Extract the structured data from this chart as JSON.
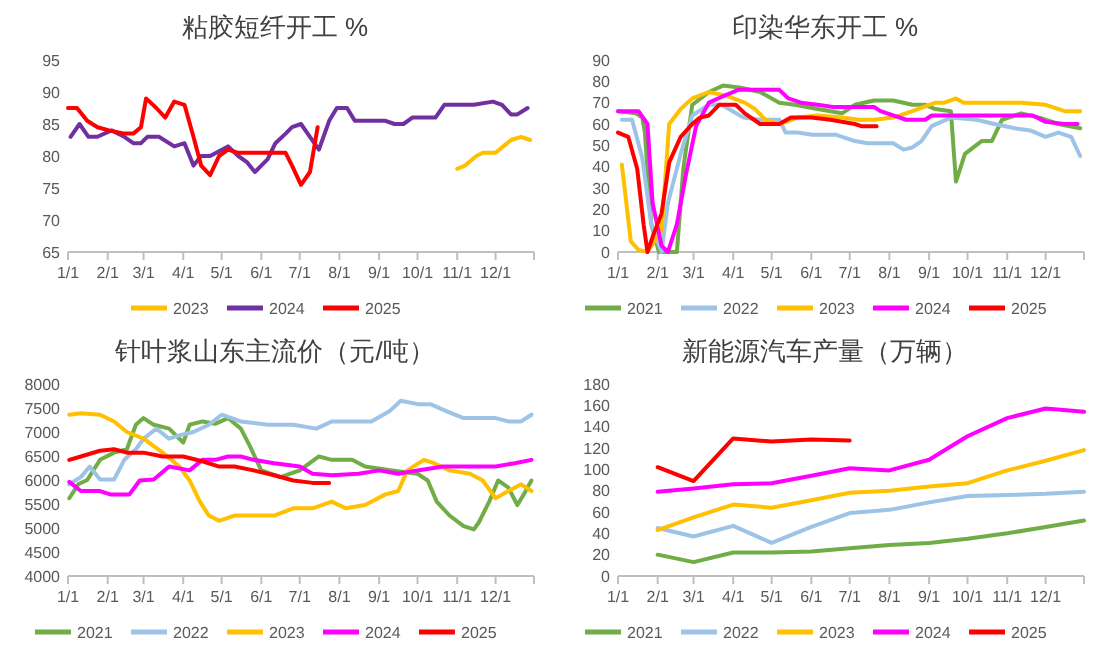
{
  "chart_data": [
    {
      "type": "line",
      "title": "粘胶短纤开工 %",
      "xlim": [
        "--01-01",
        "--12-31"
      ],
      "xticks": [
        {
          "value": "--01-01",
          "label": "1/1"
        },
        {
          "value": "--02-01",
          "label": "2/1"
        },
        {
          "value": "--03-01",
          "label": "3/1"
        },
        {
          "value": "--04-01",
          "label": "4/1"
        },
        {
          "value": "--05-01",
          "label": "5/1"
        },
        {
          "value": "--06-01",
          "label": "6/1"
        },
        {
          "value": "--07-01",
          "label": "7/1"
        },
        {
          "value": "--08-01",
          "label": "8/1"
        },
        {
          "value": "--09-01",
          "label": "9/1"
        },
        {
          "value": "--10-01",
          "label": "10/1"
        },
        {
          "value": "--11-01",
          "label": "11/1"
        },
        {
          "value": "--12-01",
          "label": "12/1"
        }
      ],
      "ylim": [
        65,
        95
      ],
      "yticks": [
        65,
        70,
        75,
        80,
        85,
        90,
        95
      ],
      "legend": "bottom",
      "series": [
        {
          "name": "2023",
          "color": "#ffc000",
          "x": [
            "--11-01",
            "--11-07",
            "--11-16",
            "--11-21",
            "--12-01",
            "--12-07",
            "--12-13",
            "--12-21",
            "--12-28"
          ],
          "values": [
            78,
            78.5,
            80,
            80.5,
            80.5,
            81.5,
            82.5,
            83,
            82.5
          ]
        },
        {
          "name": "2024",
          "color": "#7030a0",
          "x": [
            "--01-03",
            "--01-10",
            "--01-17",
            "--01-24",
            "--02-04",
            "--02-14",
            "--02-21",
            "--02-27",
            "--03-04",
            "--03-13",
            "--03-25",
            "--04-02",
            "--04-09",
            "--04-15",
            "--04-22",
            "--05-06",
            "--05-14",
            "--05-21",
            "--05-27",
            "--06-06",
            "--06-12",
            "--06-20",
            "--06-25",
            "--07-02",
            "--07-09",
            "--07-16",
            "--07-24",
            "--07-30",
            "--08-07",
            "--08-13",
            "--08-24",
            "--09-06",
            "--09-13",
            "--09-20",
            "--09-27",
            "--10-15",
            "--10-22",
            "--11-14",
            "--11-29",
            "--12-06",
            "--12-13",
            "--12-18",
            "--12-26"
          ],
          "values": [
            83,
            85,
            83,
            83,
            84,
            83,
            82,
            82,
            83,
            83,
            81.5,
            82,
            78.5,
            80,
            80,
            81.5,
            80,
            79,
            77.5,
            79.5,
            82,
            83.5,
            84.5,
            85,
            83,
            81,
            85.5,
            87.5,
            87.5,
            85.5,
            85.5,
            85.5,
            85,
            85,
            86,
            86,
            88,
            88,
            88.5,
            88,
            86.5,
            86.5,
            87.5
          ]
        },
        {
          "name": "2025",
          "color": "#ff0000",
          "x": [
            "--01-01",
            "--01-08",
            "--01-16",
            "--01-24",
            "--02-02",
            "--02-14",
            "--02-21",
            "--02-27",
            "--03-03",
            "--03-11",
            "--03-18",
            "--03-25",
            "--04-02",
            "--04-09",
            "--04-15",
            "--04-22",
            "--04-29",
            "--05-06",
            "--05-14",
            "--05-27",
            "--06-16",
            "--06-20",
            "--06-25",
            "--07-02",
            "--07-09",
            "--07-15"
          ],
          "values": [
            87.5,
            87.5,
            85.5,
            84.5,
            84,
            83.5,
            83.5,
            84.5,
            89,
            87.5,
            86,
            88.5,
            88,
            83,
            78.5,
            77,
            80,
            81,
            80.5,
            80.5,
            80.5,
            80.5,
            78.5,
            75.5,
            77.5,
            84.5
          ]
        }
      ]
    },
    {
      "type": "line",
      "title": "印染华东开工 %",
      "xlim": [
        "--01-01",
        "--12-31"
      ],
      "xticks": [
        {
          "value": "--01-01",
          "label": "1/1"
        },
        {
          "value": "--02-01",
          "label": "2/1"
        },
        {
          "value": "--03-01",
          "label": "3/1"
        },
        {
          "value": "--04-01",
          "label": "4/1"
        },
        {
          "value": "--05-01",
          "label": "5/1"
        },
        {
          "value": "--06-01",
          "label": "6/1"
        },
        {
          "value": "--07-01",
          "label": "7/1"
        },
        {
          "value": "--08-01",
          "label": "8/1"
        },
        {
          "value": "--09-01",
          "label": "9/1"
        },
        {
          "value": "--10-01",
          "label": "10/1"
        },
        {
          "value": "--11-01",
          "label": "11/1"
        },
        {
          "value": "--12-01",
          "label": "12/1"
        }
      ],
      "ylim": [
        0,
        90
      ],
      "yticks": [
        0,
        10,
        20,
        30,
        40,
        50,
        60,
        70,
        80,
        90
      ],
      "legend": "bottom",
      "series": [
        {
          "name": "2021",
          "color": "#70ad47",
          "x": [
            "--01-01",
            "--01-15",
            "--01-20",
            "--01-22",
            "--01-27",
            "--02-02",
            "--02-16",
            "--02-21",
            "--02-28",
            "--03-13",
            "--03-24",
            "--04-07",
            "--04-22",
            "--05-07",
            "--05-19",
            "--06-06",
            "--06-25",
            "--07-05",
            "--07-20",
            "--08-04",
            "--08-19",
            "--08-29",
            "--09-06",
            "--09-18",
            "--09-22",
            "--09-29",
            "--10-12",
            "--10-20",
            "--10-28",
            "--11-12",
            "--11-26",
            "--12-11",
            "--12-28"
          ],
          "values": [
            66,
            65,
            63,
            56,
            13,
            0,
            0,
            39,
            69,
            75,
            78,
            77,
            75,
            70,
            69,
            67,
            65,
            69,
            71,
            71,
            69,
            69,
            67,
            66,
            33,
            46,
            52,
            52,
            62,
            65,
            63,
            60,
            58
          ]
        },
        {
          "name": "2022",
          "color": "#9dc3e6",
          "x": [
            "--01-04",
            "--01-12",
            "--01-20",
            "--01-27",
            "--02-04",
            "--02-09",
            "--02-19",
            "--02-28",
            "--03-13",
            "--03-23",
            "--04-09",
            "--04-22",
            "--05-07",
            "--05-12",
            "--05-21",
            "--06-02",
            "--06-20",
            "--07-05",
            "--07-15",
            "--08-04",
            "--08-12",
            "--08-19",
            "--08-26",
            "--09-03",
            "--09-18",
            "--10-08",
            "--10-22",
            "--11-07",
            "--11-19",
            "--12-01",
            "--12-11",
            "--12-21",
            "--12-28"
          ],
          "values": [
            62,
            62,
            44,
            13,
            0,
            23,
            46,
            64,
            69,
            69,
            63,
            62,
            62,
            56,
            56,
            55,
            55,
            52,
            51,
            51,
            48,
            49,
            52,
            59,
            63,
            62,
            60,
            58,
            57,
            54,
            56,
            54,
            45
          ]
        },
        {
          "name": "2023",
          "color": "#ffc000",
          "x": [
            "--01-04",
            "--01-11",
            "--01-17",
            "--01-24",
            "--02-04",
            "--02-10",
            "--02-19",
            "--02-28",
            "--03-13",
            "--03-28",
            "--04-10",
            "--04-18",
            "--04-26",
            "--05-07",
            "--05-21",
            "--06-06",
            "--06-25",
            "--07-08",
            "--07-20",
            "--08-04",
            "--08-19",
            "--09-06",
            "--09-13",
            "--09-22",
            "--09-28",
            "--10-22",
            "--11-12",
            "--12-01",
            "--12-16",
            "--12-28"
          ],
          "values": [
            41,
            5,
            1,
            0,
            10,
            60,
            67,
            72,
            75,
            73,
            70,
            67,
            62,
            60,
            63,
            64,
            63,
            62,
            62,
            63,
            66,
            70,
            70,
            72,
            70,
            70,
            70,
            69,
            66,
            66
          ]
        },
        {
          "name": "2024",
          "color": "#ff00ff",
          "x": [
            "--01-01",
            "--01-17",
            "--01-24",
            "--01-28",
            "--02-04",
            "--02-09",
            "--02-16",
            "--02-23",
            "--03-03",
            "--03-13",
            "--03-24",
            "--04-05",
            "--04-22",
            "--05-07",
            "--05-14",
            "--05-24",
            "--06-06",
            "--06-18",
            "--07-05",
            "--07-20",
            "--07-25",
            "--08-04",
            "--08-14",
            "--08-29",
            "--09-03",
            "--09-28",
            "--10-17",
            "--11-07",
            "--11-21",
            "--12-01",
            "--12-16",
            "--12-26"
          ],
          "values": [
            66,
            66,
            60,
            23,
            3,
            0,
            13,
            36,
            59,
            70,
            73,
            76,
            76,
            76,
            72,
            70,
            69,
            68,
            68,
            68,
            66,
            64,
            62,
            62,
            64,
            64,
            64,
            64,
            64,
            61,
            60,
            60
          ]
        },
        {
          "name": "2025",
          "color": "#ff0000",
          "x": [
            "--01-01",
            "--01-09",
            "--01-16",
            "--01-21",
            "--01-24",
            "--01-28",
            "--02-04",
            "--02-10",
            "--02-19",
            "--02-28",
            "--03-06",
            "--03-13",
            "--03-21",
            "--04-03",
            "--04-10",
            "--04-22",
            "--05-07",
            "--05-16",
            "--06-01",
            "--06-16",
            "--07-05",
            "--07-10",
            "--07-22"
          ],
          "values": [
            56,
            54,
            39,
            13,
            0,
            7,
            18,
            42,
            54,
            60,
            63,
            64,
            69,
            69,
            65,
            60,
            60,
            63,
            63,
            62,
            60,
            59,
            59
          ]
        }
      ]
    },
    {
      "type": "line",
      "title": "针叶浆山东主流价（元/吨）",
      "xlim": [
        "--01-01",
        "--12-31"
      ],
      "xticks": [
        {
          "value": "--01-01",
          "label": "1/1"
        },
        {
          "value": "--02-01",
          "label": "2/1"
        },
        {
          "value": "--03-01",
          "label": "3/1"
        },
        {
          "value": "--04-01",
          "label": "4/1"
        },
        {
          "value": "--05-01",
          "label": "5/1"
        },
        {
          "value": "--06-01",
          "label": "6/1"
        },
        {
          "value": "--07-01",
          "label": "7/1"
        },
        {
          "value": "--08-01",
          "label": "8/1"
        },
        {
          "value": "--09-01",
          "label": "9/1"
        },
        {
          "value": "--10-01",
          "label": "10/1"
        },
        {
          "value": "--11-01",
          "label": "11/1"
        },
        {
          "value": "--12-01",
          "label": "12/1"
        }
      ],
      "ylim": [
        4000,
        8000
      ],
      "yticks": [
        4000,
        4500,
        5000,
        5500,
        6000,
        6500,
        7000,
        7500,
        8000
      ],
      "legend": "bottom",
      "series": [
        {
          "name": "2021",
          "color": "#70ad47",
          "x": [
            "--01-02",
            "--01-09",
            "--01-16",
            "--01-26",
            "--02-06",
            "--02-16",
            "--02-23",
            "--03-01",
            "--03-09",
            "--03-21",
            "--04-01",
            "--04-06",
            "--04-16",
            "--04-26",
            "--05-06",
            "--05-16",
            "--05-23",
            "--06-01",
            "--06-16",
            "--07-01",
            "--07-16",
            "--07-26",
            "--08-11",
            "--08-21",
            "--09-11",
            "--10-01",
            "--10-09",
            "--10-16",
            "--10-26",
            "--11-06",
            "--11-14",
            "--11-18",
            "--11-26",
            "--12-03",
            "--12-11",
            "--12-18",
            "--12-23",
            "--12-29"
          ],
          "values": [
            5620,
            5910,
            6000,
            6420,
            6570,
            6640,
            7150,
            7290,
            7150,
            7070,
            6780,
            7150,
            7220,
            7170,
            7290,
            7070,
            6710,
            6200,
            6060,
            6200,
            6490,
            6420,
            6420,
            6280,
            6200,
            6130,
            5990,
            5550,
            5260,
            5040,
            4970,
            5120,
            5550,
            5990,
            5840,
            5480,
            5700,
            5990
          ]
        },
        {
          "name": "2022",
          "color": "#9dc3e6",
          "x": [
            "--01-02",
            "--01-11",
            "--01-18",
            "--01-26",
            "--02-06",
            "--02-14",
            "--02-23",
            "--03-01",
            "--03-11",
            "--03-21",
            "--03-29",
            "--04-09",
            "--04-21",
            "--05-01",
            "--05-16",
            "--06-06",
            "--06-26",
            "--07-14",
            "--07-26",
            "--08-11",
            "--08-26",
            "--09-09",
            "--09-18",
            "--10-01",
            "--10-11",
            "--10-24",
            "--11-06",
            "--11-21",
            "--12-01",
            "--12-11",
            "--12-21",
            "--12-29"
          ],
          "values": [
            5910,
            6060,
            6280,
            6010,
            6010,
            6420,
            6640,
            6860,
            7070,
            6860,
            6930,
            7000,
            7150,
            7360,
            7220,
            7150,
            7150,
            7070,
            7220,
            7220,
            7220,
            7430,
            7650,
            7580,
            7580,
            7430,
            7290,
            7290,
            7290,
            7220,
            7220,
            7360
          ]
        },
        {
          "name": "2023",
          "color": "#ffc000",
          "x": [
            "--01-02",
            "--01-11",
            "--01-26",
            "--02-06",
            "--02-16",
            "--03-01",
            "--03-16",
            "--03-29",
            "--04-06",
            "--04-14",
            "--04-21",
            "--04-29",
            "--05-11",
            "--05-26",
            "--06-11",
            "--06-26",
            "--07-11",
            "--07-26",
            "--08-06",
            "--08-21",
            "--09-06",
            "--09-16",
            "--09-23",
            "--10-06",
            "--10-14",
            "--10-26",
            "--11-11",
            "--11-21",
            "--12-01",
            "--12-11",
            "--12-21",
            "--12-29"
          ],
          "values": [
            7360,
            7390,
            7360,
            7220,
            7000,
            6860,
            6570,
            6280,
            5990,
            5550,
            5260,
            5150,
            5260,
            5260,
            5260,
            5410,
            5410,
            5550,
            5410,
            5480,
            5700,
            5770,
            6200,
            6420,
            6350,
            6200,
            6130,
            5990,
            5620,
            5770,
            5910,
            5770
          ]
        },
        {
          "name": "2024",
          "color": "#ff00ff",
          "x": [
            "--01-02",
            "--01-11",
            "--01-26",
            "--02-03",
            "--02-18",
            "--02-26",
            "--03-09",
            "--03-21",
            "--04-06",
            "--04-16",
            "--04-26",
            "--05-06",
            "--05-16",
            "--05-26",
            "--06-11",
            "--07-01",
            "--07-11",
            "--07-26",
            "--08-16",
            "--09-01",
            "--09-16",
            "--10-01",
            "--10-21",
            "--11-11",
            "--12-01",
            "--12-16",
            "--12-29"
          ],
          "values": [
            5960,
            5770,
            5770,
            5700,
            5700,
            5990,
            6010,
            6280,
            6200,
            6420,
            6420,
            6490,
            6490,
            6420,
            6350,
            6280,
            6130,
            6100,
            6130,
            6200,
            6130,
            6200,
            6280,
            6280,
            6280,
            6350,
            6420
          ]
        },
        {
          "name": "2025",
          "color": "#ff0000",
          "x": [
            "--01-02",
            "--01-11",
            "--01-26",
            "--02-06",
            "--02-16",
            "--03-01",
            "--03-16",
            "--04-01",
            "--04-16",
            "--04-29",
            "--05-11",
            "--05-26",
            "--06-11",
            "--06-26",
            "--07-11",
            "--07-24"
          ],
          "values": [
            6420,
            6490,
            6610,
            6640,
            6570,
            6570,
            6490,
            6490,
            6390,
            6280,
            6280,
            6200,
            6100,
            5990,
            5940,
            5940
          ]
        }
      ]
    },
    {
      "type": "line",
      "title": "新能源汽车产量（万辆）",
      "xlim": [
        "--01-01",
        "--12-31"
      ],
      "xticks": [
        {
          "value": "--01-01",
          "label": "1/1"
        },
        {
          "value": "--02-01",
          "label": "2/1"
        },
        {
          "value": "--03-01",
          "label": "3/1"
        },
        {
          "value": "--04-01",
          "label": "4/1"
        },
        {
          "value": "--05-01",
          "label": "5/1"
        },
        {
          "value": "--06-01",
          "label": "6/1"
        },
        {
          "value": "--07-01",
          "label": "7/1"
        },
        {
          "value": "--08-01",
          "label": "8/1"
        },
        {
          "value": "--09-01",
          "label": "9/1"
        },
        {
          "value": "--10-01",
          "label": "10/1"
        },
        {
          "value": "--11-01",
          "label": "11/1"
        },
        {
          "value": "--12-01",
          "label": "12/1"
        }
      ],
      "ylim": [
        0,
        180
      ],
      "yticks": [
        0,
        20,
        40,
        60,
        80,
        100,
        120,
        140,
        160,
        180
      ],
      "legend": "bottom",
      "series": [
        {
          "name": "2021",
          "color": "#70ad47",
          "x": [
            "--02-01",
            "--03-01",
            "--04-01",
            "--05-01",
            "--06-01",
            "--07-01",
            "--08-01",
            "--09-01",
            "--10-01",
            "--11-01",
            "--12-01",
            "--12-31"
          ],
          "values": [
            20,
            13,
            22,
            22,
            23,
            26,
            29,
            31,
            35,
            40,
            46,
            52
          ]
        },
        {
          "name": "2022",
          "color": "#9dc3e6",
          "x": [
            "--02-01",
            "--03-01",
            "--04-01",
            "--05-01",
            "--06-01",
            "--07-01",
            "--08-01",
            "--09-01",
            "--10-01",
            "--11-01",
            "--12-01",
            "--12-31"
          ],
          "values": [
            45,
            37,
            47,
            31,
            46,
            59,
            62,
            69,
            75,
            76,
            77,
            79
          ]
        },
        {
          "name": "2023",
          "color": "#ffc000",
          "x": [
            "--02-01",
            "--03-01",
            "--04-01",
            "--05-01",
            "--06-01",
            "--07-01",
            "--08-01",
            "--09-01",
            "--10-01",
            "--11-01",
            "--12-01",
            "--12-31"
          ],
          "values": [
            43,
            55,
            67,
            64,
            71,
            78,
            80,
            84,
            87,
            99,
            108,
            118
          ]
        },
        {
          "name": "2024",
          "color": "#ff00ff",
          "x": [
            "--02-01",
            "--03-01",
            "--04-01",
            "--05-01",
            "--06-01",
            "--07-01",
            "--08-01",
            "--09-01",
            "--10-01",
            "--11-01",
            "--12-01",
            "--12-31"
          ],
          "values": [
            79,
            82,
            86,
            87,
            94,
            101,
            99,
            109,
            131,
            148,
            157,
            154
          ]
        },
        {
          "name": "2025",
          "color": "#ff0000",
          "x": [
            "--02-01",
            "--03-01",
            "--04-01",
            "--05-01",
            "--06-01",
            "--07-01"
          ],
          "values": [
            102,
            89,
            129,
            126,
            128,
            127
          ]
        }
      ]
    }
  ]
}
